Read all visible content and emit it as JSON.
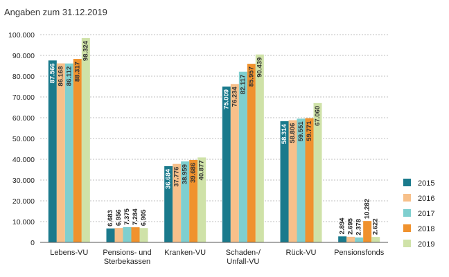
{
  "chart_data": {
    "type": "bar",
    "subtitle": "Angaben zum 31.12.2019",
    "categories": [
      [
        "Lebens-VU"
      ],
      [
        "Pensions- und",
        "Sterbekassen"
      ],
      [
        "Kranken-VU"
      ],
      [
        "Schaden-/",
        "Unfall-VU"
      ],
      [
        "Rück-VU"
      ],
      [
        "Pensionsfonds"
      ]
    ],
    "series": [
      {
        "name": "2015",
        "color": "#1a7a8c",
        "values": [
          87566,
          6683,
          36684,
          75009,
          58314,
          2894
        ],
        "labels": [
          "87.566",
          "6.683",
          "36.684",
          "75.009",
          "58.314",
          "2.894"
        ]
      },
      {
        "name": "2016",
        "color": "#f7c08a",
        "values": [
          86168,
          6956,
          37776,
          76234,
          58806,
          2695
        ],
        "labels": [
          "86.168",
          "6.956",
          "37.776",
          "76.234",
          "58.806",
          "2.695"
        ]
      },
      {
        "name": "2017",
        "color": "#7fcfcf",
        "values": [
          86112,
          7375,
          38959,
          82117,
          59551,
          2378
        ],
        "labels": [
          "86.112",
          "7.375",
          "38.959",
          "82.117",
          "59.551",
          "2.378"
        ]
      },
      {
        "name": "2018",
        "color": "#f0922e",
        "values": [
          88317,
          7284,
          39686,
          85957,
          59771,
          10282
        ],
        "labels": [
          "88.317",
          "7.284",
          "39.686",
          "85.957",
          "59.771",
          "10.282"
        ]
      },
      {
        "name": "2019",
        "color": "#cfe2a8",
        "values": [
          98324,
          6905,
          40877,
          90439,
          67060,
          2622
        ],
        "labels": [
          "98.324",
          "6.905",
          "40.877",
          "90.439",
          "67.060",
          "2.622"
        ]
      }
    ],
    "yticks": [
      {
        "value": 0,
        "label": "0"
      },
      {
        "value": 10000,
        "label": "10.000"
      },
      {
        "value": 20000,
        "label": "20.000"
      },
      {
        "value": 30000,
        "label": "30.000"
      },
      {
        "value": 40000,
        "label": "40.000"
      },
      {
        "value": 50000,
        "label": "50.000"
      },
      {
        "value": 60000,
        "label": "60.000"
      },
      {
        "value": 70000,
        "label": "70.000"
      },
      {
        "value": 80000,
        "label": "80.000"
      },
      {
        "value": 90000,
        "label": "90.000"
      },
      {
        "value": 100000,
        "label": "100.000"
      }
    ],
    "ylim": [
      0,
      100000
    ],
    "grid": true,
    "legend_position": "right"
  }
}
